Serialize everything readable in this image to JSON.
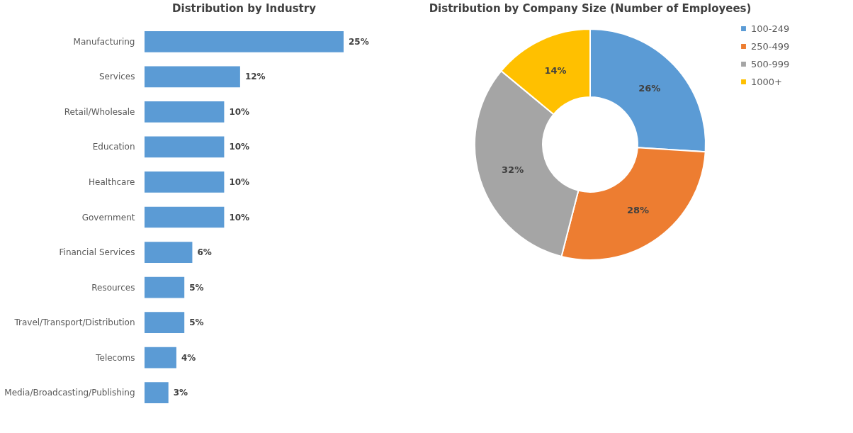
{
  "chart_data": [
    {
      "type": "bar",
      "orientation": "horizontal",
      "title": "Distribution by Industry",
      "categories": [
        "Manufacturing",
        "Services",
        "Retail/Wholesale",
        "Education",
        "Healthcare",
        "Government",
        "Financial Services",
        "Resources",
        "Travel/Transport/Distribution",
        "Telecoms",
        "Media/Broadcasting/Publishing"
      ],
      "values": [
        25,
        12,
        10,
        10,
        10,
        10,
        6,
        5,
        5,
        4,
        3
      ],
      "color": "#5b9bd5",
      "value_labels": [
        "25%",
        "12%",
        "10%",
        "10%",
        "10%",
        "10%",
        "6%",
        "5%",
        "5%",
        "4%",
        "3%"
      ]
    },
    {
      "type": "donut",
      "title": "Distribution by Company Size (Number of Employees)",
      "categories": [
        "100-249",
        "250-499",
        "500-999",
        "1000+"
      ],
      "values": [
        26,
        28,
        32,
        14
      ],
      "colors": [
        "#5b9bd5",
        "#ed7d31",
        "#a5a5a5",
        "#ffc000"
      ],
      "value_labels": [
        "26%",
        "28%",
        "32%",
        "14%"
      ],
      "legend": "right"
    }
  ]
}
